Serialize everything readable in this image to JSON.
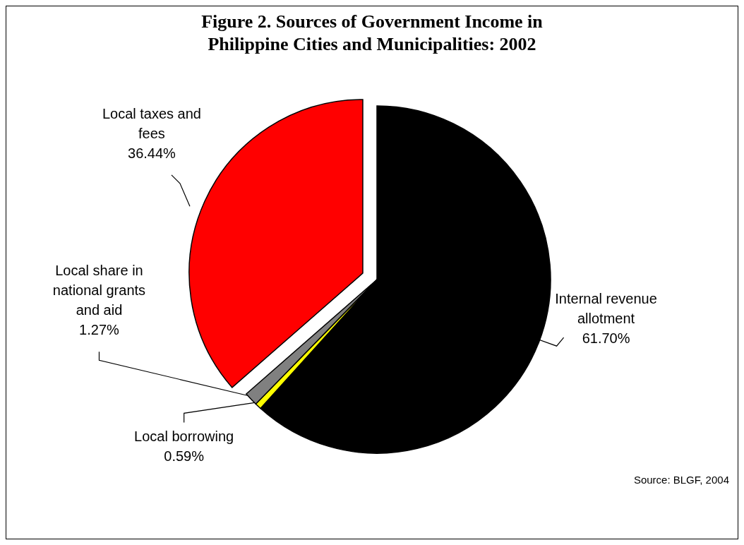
{
  "chart_data": {
    "type": "pie",
    "title": "Figure 2. Sources of Government Income in Philippine Cities and Municipalities: 2002",
    "categories": [
      "Internal revenue allotment",
      "Local borrowing",
      "Local share in national grants and aid",
      "Local taxes and fees"
    ],
    "values": [
      61.7,
      0.59,
      1.27,
      36.44
    ],
    "value_labels": [
      "61.70%",
      "0.59%",
      "1.27%",
      "36.44%"
    ],
    "colors": [
      "#000000",
      "#ffff00",
      "#808080",
      "#ff0000"
    ],
    "annotations": [
      "Source: BLGF, 2004"
    ]
  }
}
